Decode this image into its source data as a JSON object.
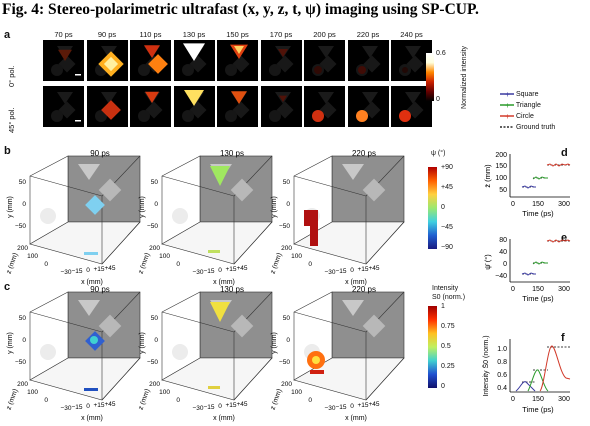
{
  "title": "Fig. 4: Stereo-polarimetric ultrafast (x, y, z, t, ψ) imaging using SP-CUP.",
  "panel_a": {
    "label": "a",
    "times": [
      "70 ps",
      "90 ps",
      "110 ps",
      "130 ps",
      "150 ps",
      "170 ps",
      "200 ps",
      "220 ps",
      "240 ps"
    ],
    "rows": [
      "0° pol.",
      "45° pol."
    ],
    "colorbar": {
      "max": "0.6",
      "min": "0",
      "label": "Normalized intensity"
    }
  },
  "panel_b": {
    "label": "b",
    "times": [
      "90 ps",
      "130 ps",
      "220 ps"
    ],
    "colorbar": {
      "label": "ψ (°)",
      "ticks": [
        "+90",
        "+45",
        "0",
        "−45",
        "−90"
      ]
    }
  },
  "panel_c": {
    "label": "c",
    "times": [
      "90 ps",
      "130 ps",
      "220 ps"
    ],
    "colorbar": {
      "label1": "Intensity",
      "label2": "S0 (norm.)",
      "ticks": [
        "1",
        "0.75",
        "0.5",
        "0.25",
        "0"
      ]
    }
  },
  "axes3d": {
    "y_label": "y (mm)",
    "z_label": "z (mm)",
    "x_label": "x (mm)",
    "y_ticks": [
      "50",
      "0",
      "−50"
    ],
    "z_ticks": [
      "200",
      "100",
      "0"
    ],
    "x_ticks": [
      "−30",
      "−15",
      "0",
      "+15",
      "+45"
    ]
  },
  "legend": {
    "items": [
      {
        "label": "Square",
        "color": "#3a3aa0"
      },
      {
        "label": "Triangle",
        "color": "#2a9a2a"
      },
      {
        "label": "Circle",
        "color": "#d23a2a"
      },
      {
        "label": "Ground truth",
        "color": "#000000"
      }
    ]
  },
  "panel_d": {
    "label": "d",
    "ylabel": "z̄ (mm)",
    "xlabel": "Time (ps)",
    "yticks": [
      "200",
      "150",
      "100",
      "50"
    ],
    "xticks": [
      "0",
      "150",
      "300"
    ]
  },
  "panel_e": {
    "label": "e",
    "ylabel": "ψ̄ (°)",
    "xlabel": "Time (ps)",
    "yticks": [
      "80",
      "40",
      "0",
      "−40"
    ],
    "xticks": [
      "0",
      "150",
      "300"
    ]
  },
  "panel_f": {
    "label": "f",
    "ylabel": "Intensity S̄0 (norm.)",
    "xlabel": "Time (ps)",
    "yticks": [
      "1.0",
      "0.8",
      "0.6",
      "0.4"
    ],
    "xticks": [
      "0",
      "150",
      "300"
    ]
  }
}
